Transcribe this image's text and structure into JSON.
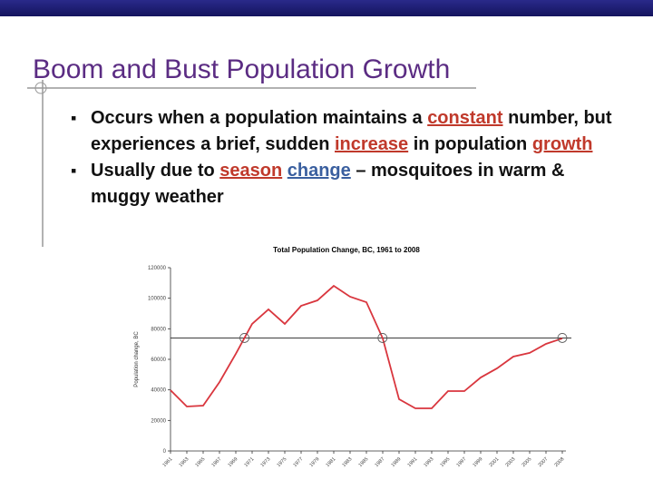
{
  "header": {
    "title": "Boom and Bust Population Growth"
  },
  "bullets": [
    [
      {
        "text": "Occurs when a population maintains a "
      },
      {
        "text": "constant",
        "color": "#c0392b",
        "underline": true
      },
      {
        "text": " number, but experiences a brief, sudden "
      },
      {
        "text": "increase",
        "color": "#c0392b",
        "underline": true
      },
      {
        "text": " in population "
      },
      {
        "text": "growth",
        "color": "#c0392b",
        "underline": true
      }
    ],
    [
      {
        "text": "Usually due to "
      },
      {
        "text": "season",
        "color": "#c0392b",
        "underline": true
      },
      {
        "text": " "
      },
      {
        "text": "change",
        "color": "#3a5f9f",
        "underline": true
      },
      {
        "text": " – mosquitoes in warm & muggy weather"
      }
    ]
  ],
  "chart_data": {
    "type": "line",
    "title": "Total Population Change, BC, 1961 to 2008",
    "y_label": "Population change, BC",
    "categories": [
      "1961",
      "1963",
      "1965",
      "1967",
      "1969",
      "1971",
      "1973",
      "1975",
      "1977",
      "1979",
      "1981",
      "1983",
      "1985",
      "1987",
      "1989",
      "1991",
      "1993",
      "1995",
      "1997",
      "1999",
      "2001",
      "2003",
      "2005",
      "2007",
      "2008"
    ],
    "values": [
      39800,
      29100,
      29700,
      45100,
      63600,
      83200,
      92700,
      83200,
      95000,
      98600,
      108100,
      101000,
      97400,
      73700,
      33900,
      27900,
      27900,
      39200,
      39200,
      48100,
      54100,
      61800,
      64200,
      70100,
      73700
    ],
    "color": "#d9363e",
    "reference_value": 74000,
    "ylim": [
      0,
      120000
    ],
    "yticks": [
      0,
      20000,
      40000,
      60000,
      80000,
      100000,
      120000
    ]
  }
}
